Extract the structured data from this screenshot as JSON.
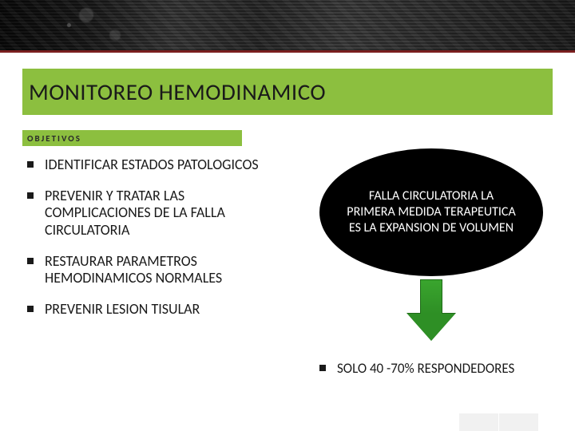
{
  "banner": {
    "accent_color": "#7a1f1f",
    "bg_gradient": [
      "#0a0a0a",
      "#1a1a1a",
      "#3a3a3a",
      "#2a2a2a",
      "#3f3f3f",
      "#1e1e1e"
    ]
  },
  "title": {
    "text": "MONITOREO HEMODINAMICO",
    "bg_color": "#8cbf3f",
    "font_size": 29,
    "text_color": "#1a1a1a"
  },
  "subtitle": {
    "text": "OBJETIVOS",
    "bg_color": "#8cbf3f",
    "font_size": 11,
    "letter_spacing": 2
  },
  "objectives": {
    "bullet_color": "#1a1a1a",
    "font_size": 18,
    "items": [
      "IDENTIFICAR ESTADOS PATOLOGICOS",
      "PREVENIR Y TRATAR LAS COMPLICACIONES DE LA FALLA CIRCULATORIA",
      "RESTAURAR PARAMETROS HEMODINAMICOS NORMALES",
      "PREVENIR LESION TISULAR"
    ]
  },
  "callout": {
    "shape": "oval",
    "bg_color": "#000000",
    "text_color": "#ffffff",
    "font_size": 16,
    "text": "FALLA CIRCULATORIA LA PRIMERA MEDIDA TERAPEUTICA ES LA EXPANSION DE VOLUMEN"
  },
  "arrow": {
    "direction": "down",
    "fill_color": "#2e8f25",
    "gradient_top": "#3aa52e",
    "border_color": "#1f6b18"
  },
  "result": {
    "bullet_color": "#1a1a1a",
    "font_size": 17,
    "items": [
      "SOLO 40 -70% RESPONDEDORES"
    ]
  },
  "footer": {
    "block_color": "#f1f1f1",
    "block_count": 2
  }
}
